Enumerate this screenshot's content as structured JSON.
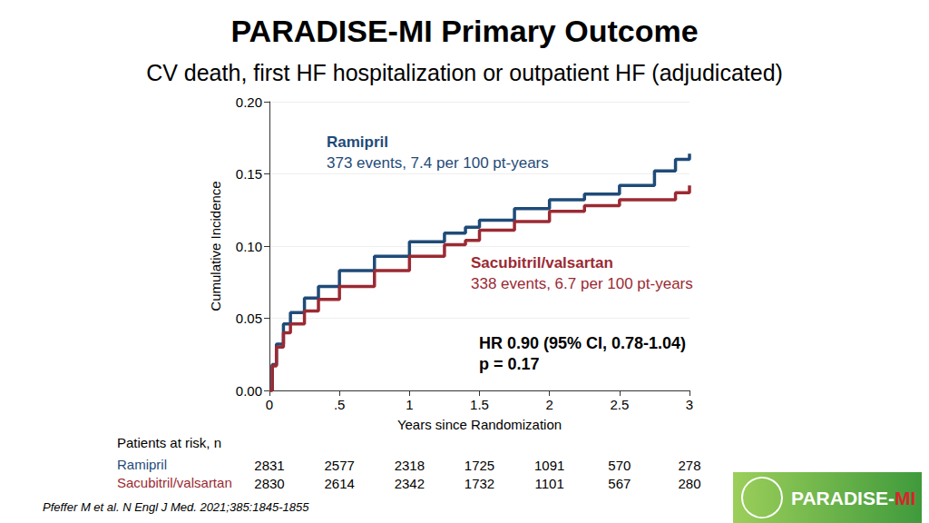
{
  "chart_data": {
    "type": "line",
    "title": "PARADISE-MI Primary Outcome",
    "subtitle": "CV death, first HF hospitalization or outpatient HF (adjudicated)",
    "xlabel": "Years since Randomization",
    "ylabel": "Cumulative Incidence",
    "xlim": [
      0,
      3
    ],
    "xticks": [
      0,
      {
        "value": 0.5,
        "label": ".5"
      },
      1,
      1.5,
      2,
      2.5,
      3
    ],
    "ylim": [
      0,
      0.2
    ],
    "yticks": [
      {
        "value": 0,
        "label": "0.00"
      },
      {
        "value": 0.05,
        "label": "0.05"
      },
      {
        "value": 0.1,
        "label": "0.10"
      },
      {
        "value": 0.15,
        "label": "0.15"
      },
      {
        "value": 0.2,
        "label": "0.20"
      }
    ],
    "grid": true,
    "x": [
      0,
      0.02,
      0.05,
      0.1,
      0.15,
      0.25,
      0.35,
      0.5,
      0.75,
      1,
      1.25,
      1.4,
      1.5,
      1.75,
      2,
      2.25,
      2.5,
      2.75,
      2.9,
      3
    ],
    "series": [
      {
        "name": "Ramipril",
        "color": "#1f4b78",
        "line_style": "step",
        "values": [
          0,
          0.018,
          0.032,
          0.046,
          0.054,
          0.064,
          0.072,
          0.083,
          0.093,
          0.103,
          0.109,
          0.113,
          0.118,
          0.126,
          0.132,
          0.136,
          0.142,
          0.152,
          0.16,
          0.164
        ]
      },
      {
        "name": "Sacubitril/valsartan",
        "color": "#9b2a33",
        "line_style": "step",
        "values": [
          0,
          0.017,
          0.03,
          0.04,
          0.046,
          0.055,
          0.063,
          0.072,
          0.083,
          0.093,
          0.101,
          0.104,
          0.111,
          0.117,
          0.124,
          0.128,
          0.132,
          0.132,
          0.137,
          0.142
        ]
      }
    ],
    "annotations": [
      {
        "series": "Ramipril",
        "lines": [
          "Ramipril",
          "373 events, 7.4 per 100 pt-years"
        ]
      },
      {
        "series": "Sacubitril/valsartan",
        "lines": [
          "Sacubitril/valsartan",
          "338 events, 6.7 per 100 pt-years"
        ]
      },
      {
        "lines": [
          "HR 0.90 (95% CI, 0.78-1.04)",
          "p = 0.17"
        ]
      }
    ],
    "at_risk": {
      "title": "Patients at risk, n",
      "times": [
        0,
        0.5,
        1,
        1.5,
        2,
        2.5,
        3
      ],
      "rows": [
        {
          "name": "Ramipril",
          "values": [
            2831,
            2577,
            2318,
            1725,
            1091,
            570,
            278
          ]
        },
        {
          "name": "Sacubitril/valsartan",
          "values": [
            2830,
            2614,
            2342,
            1732,
            1101,
            567,
            280
          ]
        }
      ]
    },
    "source": "Pfeffer M et al. N Engl J Med. 2021;385:1845-1855",
    "logo": "PARADISE-MI"
  }
}
